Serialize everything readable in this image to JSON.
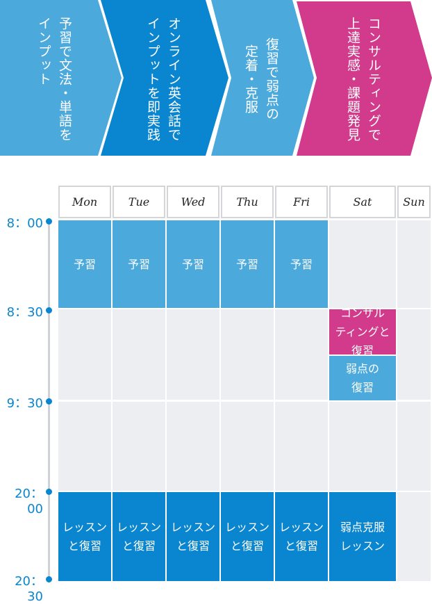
{
  "steps": [
    {
      "lines": [
        "予習で文法・単語を",
        "インプット"
      ],
      "color": "#4ba9dc"
    },
    {
      "lines": [
        "オンライン英会話で",
        "インプットを即実践"
      ],
      "color": "#0a85cf"
    },
    {
      "lines": [
        "復習で弱点の",
        "定着・克服"
      ],
      "color": "#4ba9dc"
    },
    {
      "lines": [
        "コンサルティングで",
        "上達実感・課題発見"
      ],
      "color": "#d23a8b"
    }
  ],
  "days": [
    "Mon",
    "Tue",
    "Wed",
    "Thu",
    "Fri",
    "Sat",
    "Sun"
  ],
  "times": [
    "8：00",
    "8：30",
    "9：30",
    "20：00",
    "20：30"
  ],
  "schedule": {
    "morning": [
      "予習",
      "予習",
      "予習",
      "予習",
      "予習"
    ],
    "sat_consulting": "コンサル\nティングと\n復習",
    "sat_review": "弱点の\n復習",
    "evening": [
      "レッスン\nと復習",
      "レッスン\nと復習",
      "レッスン\nと復習",
      "レッスン\nと復習",
      "レッスン\nと復習",
      "弱点克服\nレッスン"
    ]
  },
  "colors": {
    "light_blue": "#4ba9dc",
    "dark_blue": "#0a85cf",
    "pink": "#d23a8b",
    "grey_cell": "#eceef1"
  }
}
